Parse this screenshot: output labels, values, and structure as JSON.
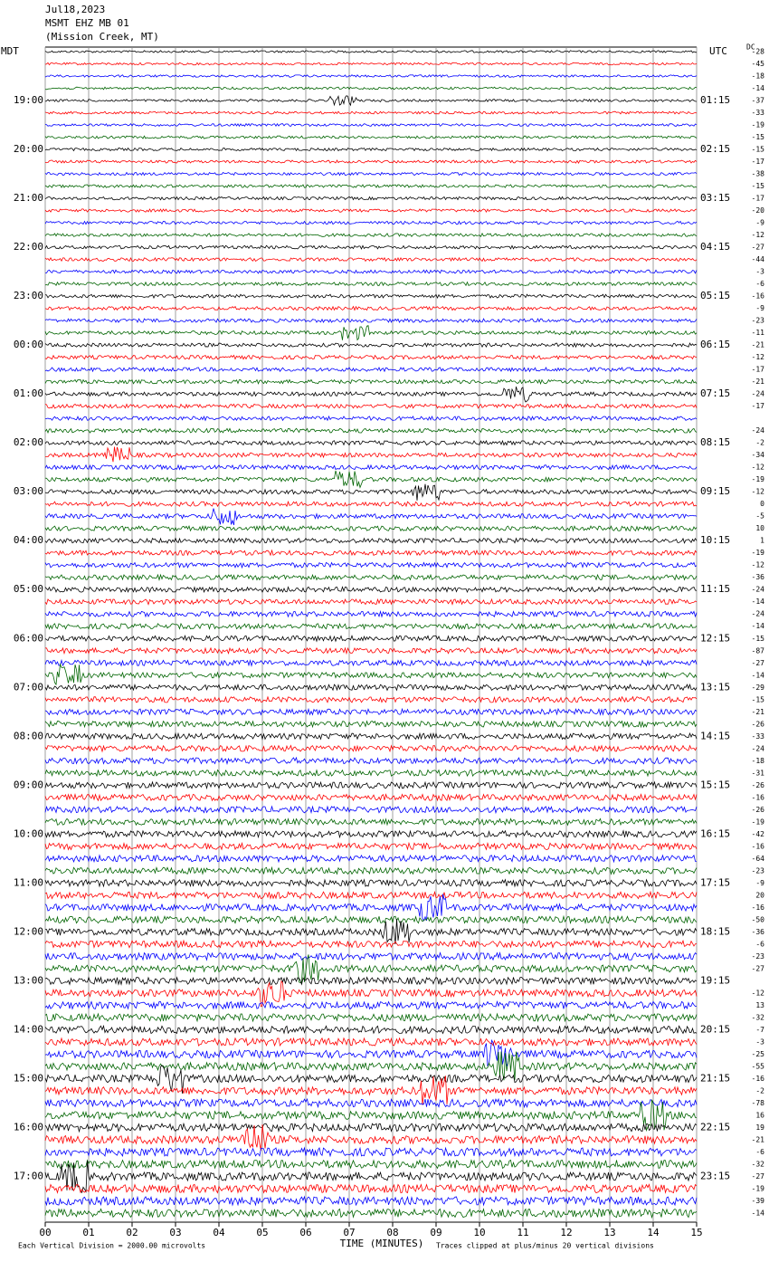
{
  "header": {
    "date": "Jul18,2023",
    "station": "MSMT EHZ MB 01",
    "location": "(Mission Creek, MT)"
  },
  "left_axis": {
    "title": "MDT",
    "labels": [
      "19:00",
      "20:00",
      "21:00",
      "22:00",
      "23:00",
      "00:00",
      "01:00",
      "02:00",
      "03:00",
      "04:00",
      "05:00",
      "06:00",
      "07:00",
      "08:00",
      "09:00",
      "10:00",
      "11:00",
      "12:00",
      "13:00",
      "14:00",
      "15:00",
      "16:00",
      "17:00"
    ]
  },
  "right_axis": {
    "title": "UTC",
    "labels": [
      "01:15",
      "02:15",
      "03:15",
      "04:15",
      "05:15",
      "06:15",
      "07:15",
      "08:15",
      "09:15",
      "10:15",
      "11:15",
      "12:15",
      "13:15",
      "14:15",
      "15:15",
      "16:15",
      "17:15",
      "18:15",
      "19:15",
      "20:15",
      "21:15",
      "22:15",
      "23:15"
    ]
  },
  "dc_offsets": {
    "title": "DC",
    "values": [
      -28,
      -45,
      -18,
      -14,
      -37,
      -33,
      -19,
      -15,
      -15,
      -17,
      -38,
      -15,
      -17,
      -20,
      -9,
      -12,
      -27,
      -44,
      -3,
      -6,
      -16,
      -9,
      -23,
      -11,
      -21,
      -12,
      -17,
      -21,
      -24,
      -17,
      null,
      -24,
      -2,
      -34,
      -12,
      -19,
      -12,
      0,
      -5,
      10,
      1,
      -19,
      -12,
      -36,
      -24,
      -14,
      -24,
      -14,
      -15,
      -87,
      -27,
      -14,
      -29,
      -15,
      -21,
      -26,
      -33,
      -24,
      -18,
      -31,
      -26,
      -16,
      -26,
      -19,
      -42,
      -16,
      -64,
      -23,
      -9,
      20,
      -16,
      -50,
      -36,
      -6,
      -23,
      -27,
      null,
      -12,
      13,
      -32,
      -7,
      -3,
      -25,
      -55,
      -16,
      -2,
      -78,
      16,
      19,
      -21,
      -6,
      -32,
      -27,
      -19,
      -39,
      -14
    ]
  },
  "trace_colors": [
    "#000000",
    "#ff0000",
    "#0000ff",
    "#006400"
  ],
  "x_axis": {
    "title": "TIME (MINUTES)",
    "ticks": [
      "00",
      "01",
      "02",
      "03",
      "04",
      "05",
      "06",
      "07",
      "08",
      "09",
      "10",
      "11",
      "12",
      "13",
      "14",
      "15"
    ]
  },
  "footer": {
    "scale_note": "Each Vertical Division = 2000.00 microvolts",
    "clip_note": "Traces clipped at plus/minus 20 vertical divisions"
  }
}
